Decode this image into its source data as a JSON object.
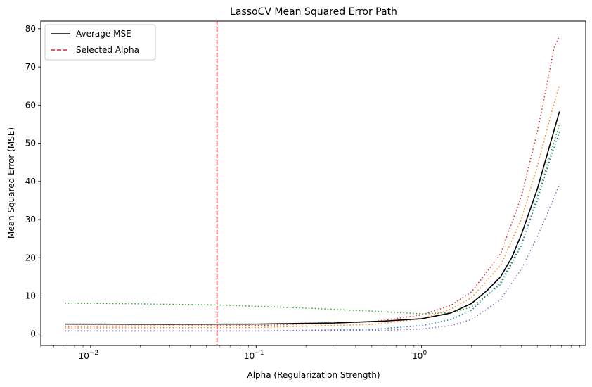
{
  "chart_data": {
    "type": "line",
    "title": "LassoCV Mean Squared Error Path",
    "xlabel": "Alpha (Regularization Strength)",
    "ylabel": "Mean Squared Error (MSE)",
    "xscale": "log",
    "xlim": [
      0.005,
      9.8
    ],
    "ylim": [
      -3,
      82
    ],
    "x_major_ticks": [
      {
        "value": 0.01,
        "base": "10",
        "exp": "−2"
      },
      {
        "value": 0.1,
        "base": "10",
        "exp": "−1"
      },
      {
        "value": 1,
        "base": "10",
        "exp": "0"
      }
    ],
    "y_ticks": [
      0,
      10,
      20,
      30,
      40,
      50,
      60,
      70,
      80
    ],
    "selected_alpha": 0.058,
    "legend": {
      "position": "upper-left",
      "entries": [
        {
          "label": "Average MSE",
          "color": "#000000",
          "style": "solid"
        },
        {
          "label": "Selected Alpha",
          "color": "#d62728",
          "style": "dashed"
        }
      ]
    },
    "series": [
      {
        "color": "#000000",
        "style": "solid",
        "role": "average",
        "points": [
          [
            0.007,
            2.6
          ],
          [
            0.03,
            2.55
          ],
          [
            0.1,
            2.6
          ],
          [
            0.3,
            2.9
          ],
          [
            0.6,
            3.4
          ],
          [
            1.0,
            4.0
          ],
          [
            1.5,
            5.5
          ],
          [
            2.0,
            8.0
          ],
          [
            2.5,
            11.5
          ],
          [
            3.0,
            15.0
          ],
          [
            3.5,
            20.0
          ],
          [
            4.0,
            26.0
          ],
          [
            5.0,
            38.0
          ],
          [
            6.0,
            50.0
          ],
          [
            6.8,
            58.3
          ]
        ]
      },
      {
        "color": "#d62728",
        "style": "dotted",
        "points": [
          [
            0.007,
            2.0
          ],
          [
            0.1,
            2.2
          ],
          [
            0.5,
            3.2
          ],
          [
            1.0,
            5.0
          ],
          [
            1.5,
            7.5
          ],
          [
            2.0,
            11.0
          ],
          [
            3.0,
            21.0
          ],
          [
            4.0,
            36.0
          ],
          [
            5.0,
            53.0
          ],
          [
            6.0,
            70.0
          ],
          [
            6.3,
            75.0
          ],
          [
            6.8,
            78.0
          ]
        ]
      },
      {
        "color": "#ff7f0e",
        "style": "dotted",
        "points": [
          [
            0.007,
            1.6
          ],
          [
            0.1,
            1.7
          ],
          [
            0.5,
            2.5
          ],
          [
            1.0,
            4.0
          ],
          [
            1.5,
            6.5
          ],
          [
            2.0,
            9.5
          ],
          [
            3.0,
            18.0
          ],
          [
            4.0,
            30.0
          ],
          [
            5.0,
            44.0
          ],
          [
            6.0,
            57.0
          ],
          [
            6.8,
            65.3
          ]
        ]
      },
      {
        "color": "#2ca02c",
        "style": "dotted",
        "points": [
          [
            0.007,
            8.1
          ],
          [
            0.02,
            7.9
          ],
          [
            0.06,
            7.6
          ],
          [
            0.2,
            6.8
          ],
          [
            0.5,
            6.0
          ],
          [
            1.0,
            5.3
          ],
          [
            1.5,
            5.6
          ],
          [
            2.0,
            7.0
          ],
          [
            3.0,
            13.0
          ],
          [
            4.0,
            23.0
          ],
          [
            5.0,
            36.0
          ],
          [
            6.0,
            47.0
          ],
          [
            6.8,
            55.0
          ]
        ]
      },
      {
        "color": "#1f77b4",
        "style": "dotted",
        "points": [
          [
            0.007,
            0.8
          ],
          [
            0.1,
            0.8
          ],
          [
            0.5,
            1.2
          ],
          [
            1.0,
            2.2
          ],
          [
            1.5,
            3.8
          ],
          [
            2.0,
            6.2
          ],
          [
            3.0,
            13.5
          ],
          [
            4.0,
            23.5
          ],
          [
            5.0,
            35.0
          ],
          [
            6.0,
            46.0
          ],
          [
            6.8,
            53.0
          ]
        ]
      },
      {
        "color": "#9467bd",
        "style": "dotted",
        "points": [
          [
            0.007,
            0.8
          ],
          [
            0.1,
            0.8
          ],
          [
            0.5,
            0.9
          ],
          [
            1.0,
            1.3
          ],
          [
            1.5,
            2.2
          ],
          [
            2.0,
            3.8
          ],
          [
            3.0,
            9.0
          ],
          [
            4.0,
            17.0
          ],
          [
            5.0,
            25.5
          ],
          [
            6.0,
            33.5
          ],
          [
            6.8,
            39.3
          ]
        ]
      }
    ]
  }
}
